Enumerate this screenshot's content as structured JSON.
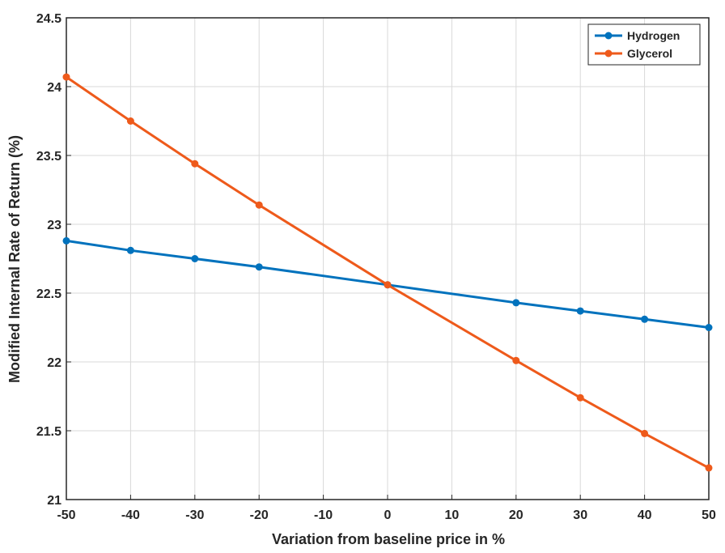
{
  "chart_data": {
    "type": "line",
    "title": "",
    "xlabel": "Variation from baseline price in %",
    "ylabel": "Modified Internal Rate of Return (%)",
    "xlim": [
      -50,
      50
    ],
    "ylim": [
      21,
      24.5
    ],
    "xticks": [
      -50,
      -40,
      -30,
      -20,
      -10,
      0,
      10,
      20,
      30,
      40,
      50
    ],
    "yticks": [
      21,
      21.5,
      22,
      22.5,
      23,
      23.5,
      24,
      24.5
    ],
    "xtick_labels": [
      "-50",
      "-40",
      "-30",
      "-20",
      "-10",
      "0",
      "10",
      "20",
      "30",
      "40",
      "50"
    ],
    "ytick_labels": [
      "21",
      "21.5",
      "22",
      "22.5",
      "23",
      "23.5",
      "24",
      "24.5"
    ],
    "grid": true,
    "legend_position": "top-right",
    "series": [
      {
        "name": "Hydrogen",
        "color": "#0072BD",
        "x": [
          -50,
          -40,
          -30,
          -20,
          0,
          20,
          30,
          40,
          50
        ],
        "y": [
          22.88,
          22.81,
          22.75,
          22.69,
          22.56,
          22.43,
          22.37,
          22.31,
          22.25
        ]
      },
      {
        "name": "Glycerol",
        "color": "#EE5A1B",
        "x": [
          -50,
          -40,
          -30,
          -20,
          0,
          20,
          30,
          40,
          50
        ],
        "y": [
          24.07,
          23.75,
          23.44,
          23.14,
          22.56,
          22.01,
          21.74,
          21.48,
          21.23
        ]
      }
    ]
  }
}
